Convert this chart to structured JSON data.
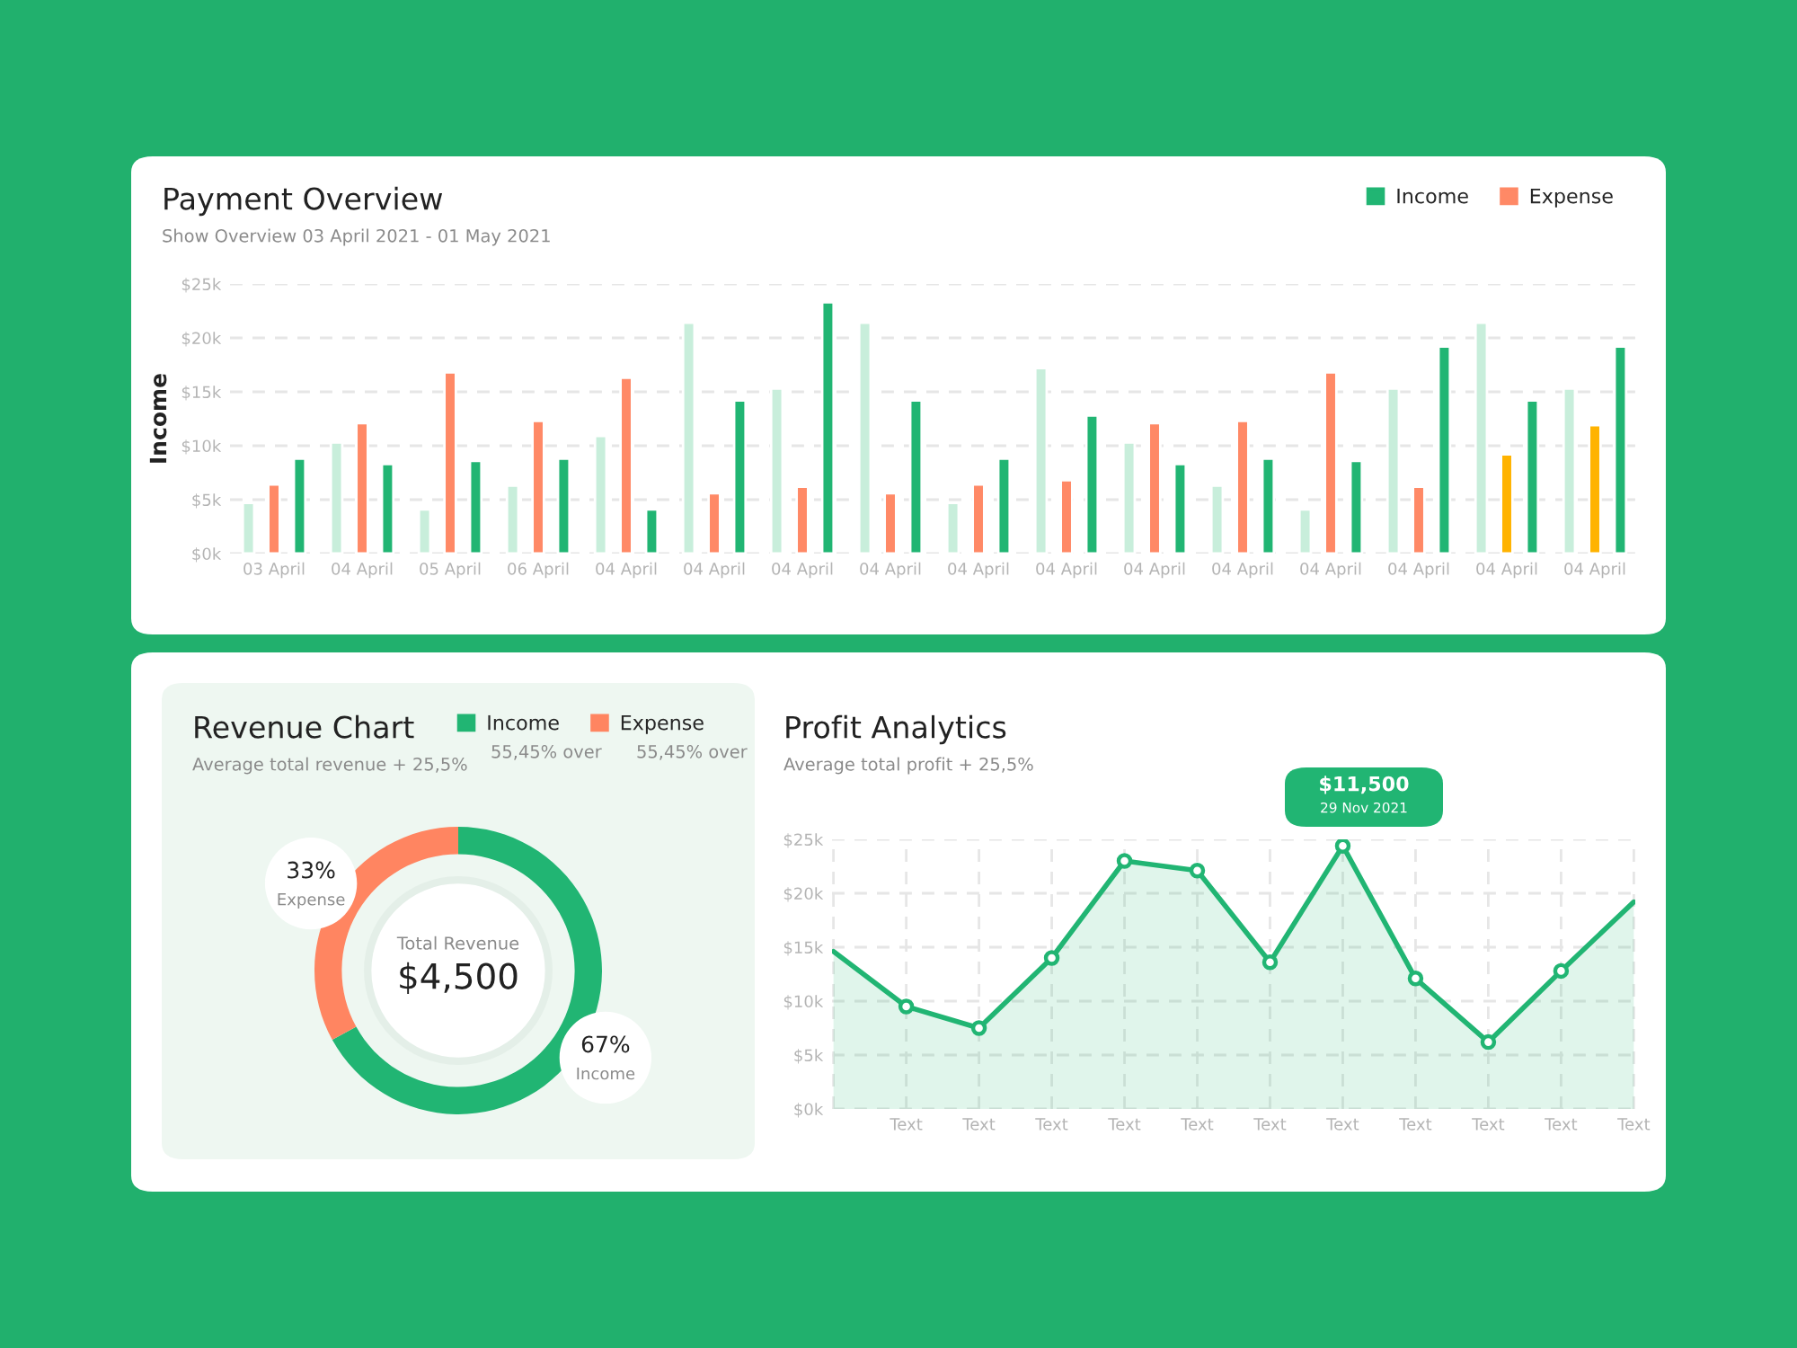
{
  "chart_data": [
    {
      "type": "bar",
      "title": "Payment Overview",
      "subtitle": "Show Overview 03 April 2021 - 01 May 2021",
      "ylabel": "Income",
      "categories": [
        "03 April",
        "04 April",
        "05 April",
        "06 April",
        "04 April",
        "04 April",
        "04 April",
        "04 April",
        "04 April",
        "04 April",
        "04 April",
        "04 April",
        "04 April",
        "04 April",
        "04 April",
        "04 April"
      ],
      "series": [
        {
          "color": "#c8eedb",
          "values": [
            4.7,
            10.3,
            4.1,
            6.3,
            10.9,
            21.4,
            15.3,
            21.4,
            4.7,
            17.2,
            10.3,
            6.3,
            4.1,
            15.3,
            21.4,
            15.3
          ]
        },
        {
          "name": "Expense",
          "colors": [
            "#ff8966",
            "#ff8966",
            "#ff8966",
            "#ff8966",
            "#ff8966",
            "#ff8966",
            "#ff8966",
            "#ff8966",
            "#ff8966",
            "#ff8966",
            "#ff8966",
            "#ff8966",
            "#ff8966",
            "#ff8966",
            "#ffb300",
            "#ffb300"
          ],
          "values": [
            6.4,
            12.1,
            16.8,
            12.3,
            16.3,
            5.6,
            6.2,
            5.6,
            6.4,
            6.8,
            12.1,
            12.3,
            16.8,
            6.2,
            9.2,
            11.9
          ]
        },
        {
          "name": "Income",
          "color": "#21b573",
          "values": [
            8.8,
            8.3,
            8.6,
            8.8,
            4.1,
            14.2,
            23.3,
            14.2,
            8.8,
            12.8,
            8.3,
            8.8,
            8.6,
            19.2,
            14.2,
            19.2
          ]
        }
      ],
      "ylim": [
        0,
        25
      ],
      "yticks": [
        {
          "value": 0,
          "label": "$0k"
        },
        {
          "value": 5,
          "label": "$5k"
        },
        {
          "value": 10,
          "label": "$10k"
        },
        {
          "value": 15,
          "label": "$15k"
        },
        {
          "value": 20,
          "label": "$20k"
        },
        {
          "value": 25,
          "label": "$25k"
        }
      ],
      "grid": "y",
      "legend": "top right"
    },
    {
      "type": "donut",
      "title": "Revenue Chart",
      "subtitle": "Average total revenue + 25,5%",
      "categories": [
        "Income",
        "Expense"
      ],
      "values": [
        67,
        33
      ],
      "colors": [
        "#21b573",
        "#ff8561"
      ],
      "value_labels": [
        "67%",
        "33%"
      ],
      "annotations": [
        "Total Revenue",
        "$4,500",
        "55,45% over",
        "55,45% over"
      ],
      "legend": "top right"
    },
    {
      "type": "line",
      "title": "Profit Analytics",
      "subtitle": "Average total profit + 25,5%",
      "series": [
        {
          "type": "area",
          "color": "#21b573",
          "values": [
            14.6,
            9.5,
            7.5,
            14.0,
            23.0,
            22.1,
            13.6,
            24.4,
            12.1,
            6.2,
            12.8,
            19.2
          ]
        },
        {
          "type": "scatter",
          "color": "#21b573",
          "marker": "circle",
          "values": [
            null,
            9.5,
            7.5,
            14.0,
            23.0,
            22.1,
            13.6,
            24.4,
            12.1,
            6.2,
            12.8,
            null
          ]
        }
      ],
      "categories": [
        null,
        "Text",
        "Text",
        "Text",
        "Text",
        "Text",
        "Text",
        "Text",
        "Text",
        "Text",
        "Text",
        "Text"
      ],
      "ylim": [
        0,
        25
      ],
      "yticks": [
        {
          "value": 0,
          "label": "$0k"
        },
        {
          "value": 5,
          "label": "$5k"
        },
        {
          "value": 10,
          "label": "$10k"
        },
        {
          "value": 15,
          "label": "$15k"
        },
        {
          "value": 20,
          "label": "$20k"
        },
        {
          "value": 25,
          "label": "$25k"
        }
      ],
      "grid": true,
      "annotations": [
        "$11,500",
        "29 Nov 2021"
      ]
    }
  ]
}
